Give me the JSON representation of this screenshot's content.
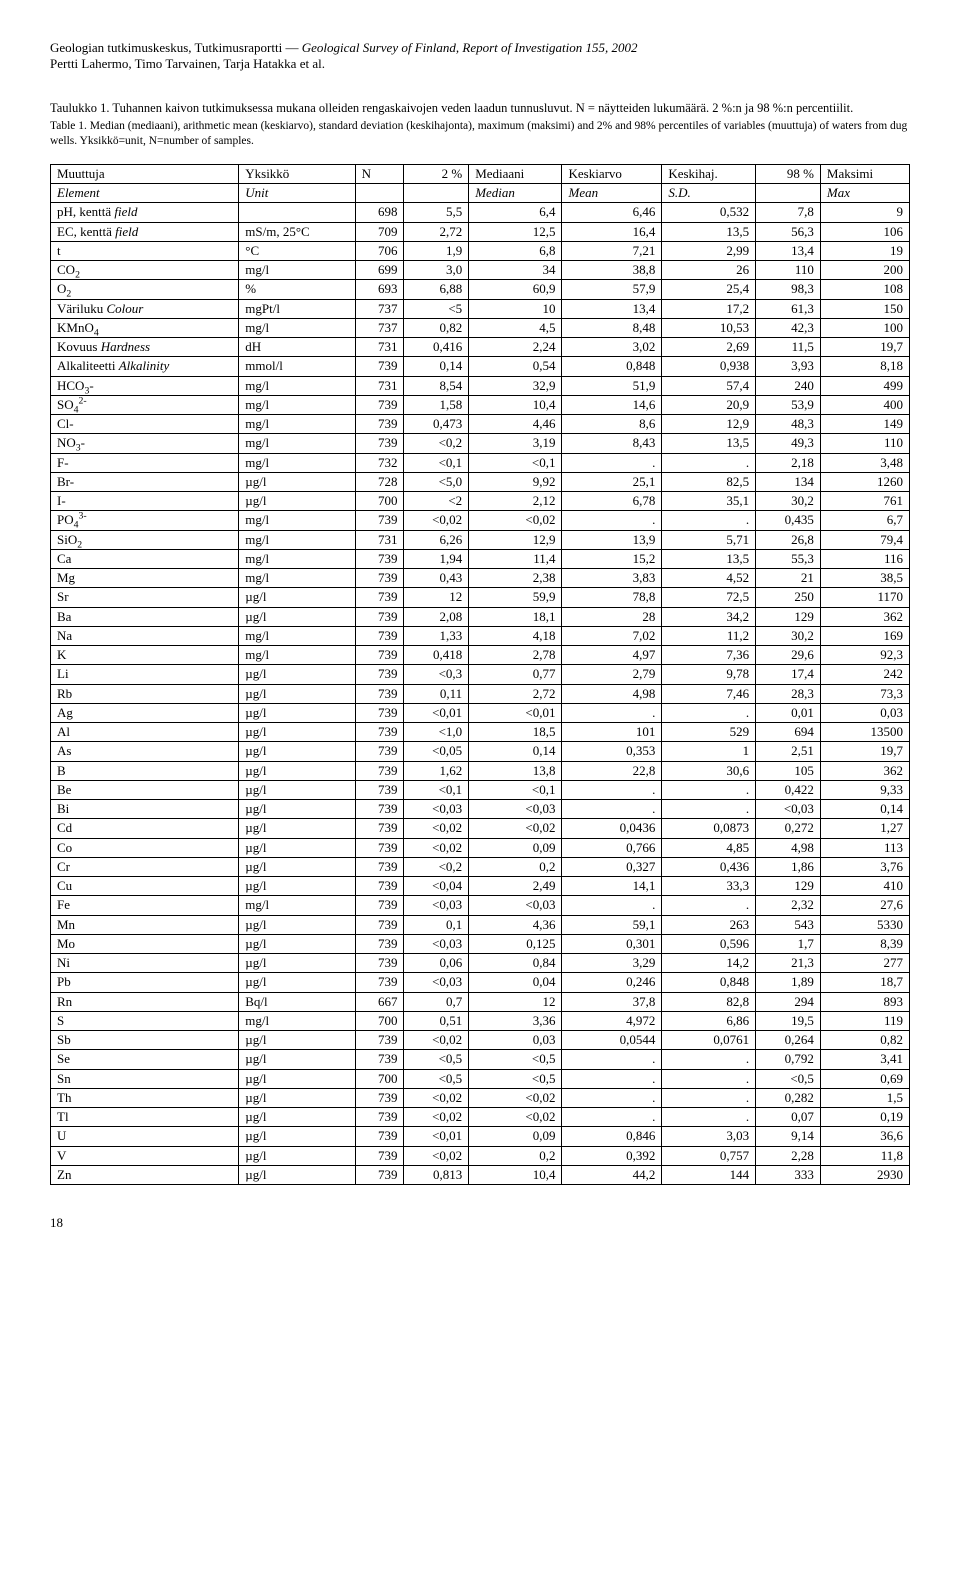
{
  "header": {
    "line1a": "Geologian tutkimuskeskus, Tutkimusraportti — ",
    "line1b": "Geological Survey of Finland, Report of Investigation 155, 2002",
    "line2": "Pertti Lahermo, Timo Tarvainen, Tarja Hatakka et al."
  },
  "caption": {
    "fi": "Taulukko 1. Tuhannen kaivon tutkimuksessa mukana olleiden rengaskaivojen veden laadun tunnusluvut. N = näytteiden lukumäärä. 2 %:n ja 98 %:n percentiilit.",
    "en": "Table 1. Median (mediaani), arithmetic mean (keskiarvo), standard deviation (keskihajonta), maximum (maksimi) and 2% and 98% percentiles of variables (muuttuja) of waters from dug wells. Yksikkö=unit, N=number of samples."
  },
  "table": {
    "head": {
      "r1": [
        "Muuttuja",
        "Yksikkö",
        "N",
        "2 %",
        "Mediaani",
        "Keskiarvo",
        "Keskihaj.",
        "98 %",
        "Maksimi"
      ],
      "r2": [
        "Element",
        "Unit",
        "",
        "",
        "Median",
        "Mean",
        "S.D.",
        "",
        "Max"
      ]
    },
    "rows": [
      {
        "m": "pH, kenttä <span class='ital'>field</span>",
        "u": "",
        "n": "698",
        "p2": "5,5",
        "md": "6,4",
        "mn": "6,46",
        "sd": "0,532",
        "p98": "7,8",
        "mx": "9"
      },
      {
        "m": "EC, kenttä <span class='ital'>field</span>",
        "u": "mS/m, 25°C",
        "n": "709",
        "p2": "2,72",
        "md": "12,5",
        "mn": "16,4",
        "sd": "13,5",
        "p98": "56,3",
        "mx": "106"
      },
      {
        "m": "t",
        "u": "°C",
        "n": "706",
        "p2": "1,9",
        "md": "6,8",
        "mn": "7,21",
        "sd": "2,99",
        "p98": "13,4",
        "mx": "19"
      },
      {
        "m": "CO<sub>2</sub>",
        "u": "mg/l",
        "n": "699",
        "p2": "3,0",
        "md": "34",
        "mn": "38,8",
        "sd": "26",
        "p98": "110",
        "mx": "200"
      },
      {
        "m": "O<sub>2</sub>",
        "u": "%",
        "n": "693",
        "p2": "6,88",
        "md": "60,9",
        "mn": "57,9",
        "sd": "25,4",
        "p98": "98,3",
        "mx": "108"
      },
      {
        "m": "Väriluku <span class='ital'>Colour</span>",
        "u": "mgPt/l",
        "n": "737",
        "p2": "&lt;5",
        "md": "10",
        "mn": "13,4",
        "sd": "17,2",
        "p98": "61,3",
        "mx": "150"
      },
      {
        "m": "KMnO<sub>4</sub>",
        "u": "mg/l",
        "n": "737",
        "p2": "0,82",
        "md": "4,5",
        "mn": "8,48",
        "sd": "10,53",
        "p98": "42,3",
        "mx": "100"
      },
      {
        "m": "Kovuus <span class='ital'>Hardness</span>",
        "u": "dH",
        "n": "731",
        "p2": "0,416",
        "md": "2,24",
        "mn": "3,02",
        "sd": "2,69",
        "p98": "11,5",
        "mx": "19,7"
      },
      {
        "m": "Alkaliteetti <span class='ital'>Alkalinity</span>",
        "u": "mmol/l",
        "n": "739",
        "p2": "0,14",
        "md": "0,54",
        "mn": "0,848",
        "sd": "0,938",
        "p98": "3,93",
        "mx": "8,18"
      },
      {
        "m": "HCO<sub>3</sub>-",
        "u": "mg/l",
        "n": "731",
        "p2": "8,54",
        "md": "32,9",
        "mn": "51,9",
        "sd": "57,4",
        "p98": "240",
        "mx": "499"
      },
      {
        "m": "SO<sub>4</sub><sup>2-</sup>",
        "u": "mg/l",
        "n": "739",
        "p2": "1,58",
        "md": "10,4",
        "mn": "14,6",
        "sd": "20,9",
        "p98": "53,9",
        "mx": "400"
      },
      {
        "m": "Cl-",
        "u": "mg/l",
        "n": "739",
        "p2": "0,473",
        "md": "4,46",
        "mn": "8,6",
        "sd": "12,9",
        "p98": "48,3",
        "mx": "149"
      },
      {
        "m": "NO<sub>3</sub>-",
        "u": "mg/l",
        "n": "739",
        "p2": "&lt;0,2",
        "md": "3,19",
        "mn": "8,43",
        "sd": "13,5",
        "p98": "49,3",
        "mx": "110"
      },
      {
        "m": "F-",
        "u": "mg/l",
        "n": "732",
        "p2": "&lt;0,1",
        "md": "&lt;0,1",
        "mn": ".",
        "sd": ".",
        "p98": "2,18",
        "mx": "3,48"
      },
      {
        "m": "Br-",
        "u": "µg/l",
        "n": "728",
        "p2": "&lt;5,0",
        "md": "9,92",
        "mn": "25,1",
        "sd": "82,5",
        "p98": "134",
        "mx": "1260"
      },
      {
        "m": "I-",
        "u": "µg/l",
        "n": "700",
        "p2": "&lt;2",
        "md": "2,12",
        "mn": "6,78",
        "sd": "35,1",
        "p98": "30,2",
        "mx": "761"
      },
      {
        "m": "PO<sub>4</sub><sup>3-</sup>",
        "u": "mg/l",
        "n": "739",
        "p2": "&lt;0,02",
        "md": "&lt;0,02",
        "mn": ".",
        "sd": ".",
        "p98": "0,435",
        "mx": "6,7"
      },
      {
        "m": "SiO<sub>2</sub>",
        "u": "mg/l",
        "n": "731",
        "p2": "6,26",
        "md": "12,9",
        "mn": "13,9",
        "sd": "5,71",
        "p98": "26,8",
        "mx": "79,4"
      },
      {
        "m": "Ca",
        "u": "mg/l",
        "n": "739",
        "p2": "1,94",
        "md": "11,4",
        "mn": "15,2",
        "sd": "13,5",
        "p98": "55,3",
        "mx": "116"
      },
      {
        "m": "Mg",
        "u": "mg/l",
        "n": "739",
        "p2": "0,43",
        "md": "2,38",
        "mn": "3,83",
        "sd": "4,52",
        "p98": "21",
        "mx": "38,5"
      },
      {
        "m": "Sr",
        "u": "µg/l",
        "n": "739",
        "p2": "12",
        "md": "59,9",
        "mn": "78,8",
        "sd": "72,5",
        "p98": "250",
        "mx": "1170"
      },
      {
        "m": "Ba",
        "u": "µg/l",
        "n": "739",
        "p2": "2,08",
        "md": "18,1",
        "mn": "28",
        "sd": "34,2",
        "p98": "129",
        "mx": "362"
      },
      {
        "m": "Na",
        "u": "mg/l",
        "n": "739",
        "p2": "1,33",
        "md": "4,18",
        "mn": "7,02",
        "sd": "11,2",
        "p98": "30,2",
        "mx": "169"
      },
      {
        "m": "K",
        "u": "mg/l",
        "n": "739",
        "p2": "0,418",
        "md": "2,78",
        "mn": "4,97",
        "sd": "7,36",
        "p98": "29,6",
        "mx": "92,3"
      },
      {
        "m": "Li",
        "u": "µg/l",
        "n": "739",
        "p2": "&lt;0,3",
        "md": "0,77",
        "mn": "2,79",
        "sd": "9,78",
        "p98": "17,4",
        "mx": "242"
      },
      {
        "m": "Rb",
        "u": "µg/l",
        "n": "739",
        "p2": "0,11",
        "md": "2,72",
        "mn": "4,98",
        "sd": "7,46",
        "p98": "28,3",
        "mx": "73,3"
      },
      {
        "m": "Ag",
        "u": "µg/l",
        "n": "739",
        "p2": "&lt;0,01",
        "md": "&lt;0,01",
        "mn": ".",
        "sd": ".",
        "p98": "0,01",
        "mx": "0,03"
      },
      {
        "m": "Al",
        "u": "µg/l",
        "n": "739",
        "p2": "&lt;1,0",
        "md": "18,5",
        "mn": "101",
        "sd": "529",
        "p98": "694",
        "mx": "13500"
      },
      {
        "m": "As",
        "u": "µg/l",
        "n": "739",
        "p2": "&lt;0,05",
        "md": "0,14",
        "mn": "0,353",
        "sd": "1",
        "p98": "2,51",
        "mx": "19,7"
      },
      {
        "m": "B",
        "u": "µg/l",
        "n": "739",
        "p2": "1,62",
        "md": "13,8",
        "mn": "22,8",
        "sd": "30,6",
        "p98": "105",
        "mx": "362"
      },
      {
        "m": "Be",
        "u": "µg/l",
        "n": "739",
        "p2": "&lt;0,1",
        "md": "&lt;0,1",
        "mn": ".",
        "sd": ".",
        "p98": "0,422",
        "mx": "9,33"
      },
      {
        "m": "Bi",
        "u": "µg/l",
        "n": "739",
        "p2": "&lt;0,03",
        "md": "&lt;0,03",
        "mn": ".",
        "sd": ".",
        "p98": "&lt;0,03",
        "mx": "0,14"
      },
      {
        "m": "Cd",
        "u": "µg/l",
        "n": "739",
        "p2": "&lt;0,02",
        "md": "&lt;0,02",
        "mn": "0,0436",
        "sd": "0,0873",
        "p98": "0,272",
        "mx": "1,27"
      },
      {
        "m": "Co",
        "u": "µg/l",
        "n": "739",
        "p2": "&lt;0,02",
        "md": "0,09",
        "mn": "0,766",
        "sd": "4,85",
        "p98": "4,98",
        "mx": "113"
      },
      {
        "m": "Cr",
        "u": "µg/l",
        "n": "739",
        "p2": "&lt;0,2",
        "md": "0,2",
        "mn": "0,327",
        "sd": "0,436",
        "p98": "1,86",
        "mx": "3,76"
      },
      {
        "m": "Cu",
        "u": "µg/l",
        "n": "739",
        "p2": "&lt;0,04",
        "md": "2,49",
        "mn": "14,1",
        "sd": "33,3",
        "p98": "129",
        "mx": "410"
      },
      {
        "m": "Fe",
        "u": "mg/l",
        "n": "739",
        "p2": "&lt;0,03",
        "md": "&lt;0,03",
        "mn": ".",
        "sd": ".",
        "p98": "2,32",
        "mx": "27,6"
      },
      {
        "m": "Mn",
        "u": "µg/l",
        "n": "739",
        "p2": "0,1",
        "md": "4,36",
        "mn": "59,1",
        "sd": "263",
        "p98": "543",
        "mx": "5330"
      },
      {
        "m": "Mo",
        "u": "µg/l",
        "n": "739",
        "p2": "&lt;0,03",
        "md": "0,125",
        "mn": "0,301",
        "sd": "0,596",
        "p98": "1,7",
        "mx": "8,39"
      },
      {
        "m": "Ni",
        "u": "µg/l",
        "n": "739",
        "p2": "0,06",
        "md": "0,84",
        "mn": "3,29",
        "sd": "14,2",
        "p98": "21,3",
        "mx": "277"
      },
      {
        "m": "Pb",
        "u": "µg/l",
        "n": "739",
        "p2": "&lt;0,03",
        "md": "0,04",
        "mn": "0,246",
        "sd": "0,848",
        "p98": "1,89",
        "mx": "18,7"
      },
      {
        "m": "Rn",
        "u": "Bq/l",
        "n": "667",
        "p2": "0,7",
        "md": "12",
        "mn": "37,8",
        "sd": "82,8",
        "p98": "294",
        "mx": "893"
      },
      {
        "m": "S",
        "u": "mg/l",
        "n": "700",
        "p2": "0,51",
        "md": "3,36",
        "mn": "4,972",
        "sd": "6,86",
        "p98": "19,5",
        "mx": "119"
      },
      {
        "m": "Sb",
        "u": "µg/l",
        "n": "739",
        "p2": "&lt;0,02",
        "md": "0,03",
        "mn": "0,0544",
        "sd": "0,0761",
        "p98": "0,264",
        "mx": "0,82"
      },
      {
        "m": "Se",
        "u": "µg/l",
        "n": "739",
        "p2": "&lt;0,5",
        "md": "&lt;0,5",
        "mn": ".",
        "sd": ".",
        "p98": "0,792",
        "mx": "3,41"
      },
      {
        "m": "Sn",
        "u": "µg/l",
        "n": "700",
        "p2": "&lt;0,5",
        "md": "&lt;0,5",
        "mn": ".",
        "sd": ".",
        "p98": "&lt;0,5",
        "mx": "0,69"
      },
      {
        "m": "Th",
        "u": "µg/l",
        "n": "739",
        "p2": "&lt;0,02",
        "md": "&lt;0,02",
        "mn": ".",
        "sd": ".",
        "p98": "0,282",
        "mx": "1,5"
      },
      {
        "m": "Tl",
        "u": "µg/l",
        "n": "739",
        "p2": "&lt;0,02",
        "md": "&lt;0,02",
        "mn": ".",
        "sd": ".",
        "p98": "0,07",
        "mx": "0,19"
      },
      {
        "m": "U",
        "u": "µg/l",
        "n": "739",
        "p2": "&lt;0,01",
        "md": "0,09",
        "mn": "0,846",
        "sd": "3,03",
        "p98": "9,14",
        "mx": "36,6"
      },
      {
        "m": "V",
        "u": "µg/l",
        "n": "739",
        "p2": "&lt;0,02",
        "md": "0,2",
        "mn": "0,392",
        "sd": "0,757",
        "p98": "2,28",
        "mx": "11,8"
      },
      {
        "m": "Zn",
        "u": "µg/l",
        "n": "739",
        "p2": "0,813",
        "md": "10,4",
        "mn": "44,2",
        "sd": "144",
        "p98": "333",
        "mx": "2930"
      }
    ]
  },
  "pageNumber": "18"
}
